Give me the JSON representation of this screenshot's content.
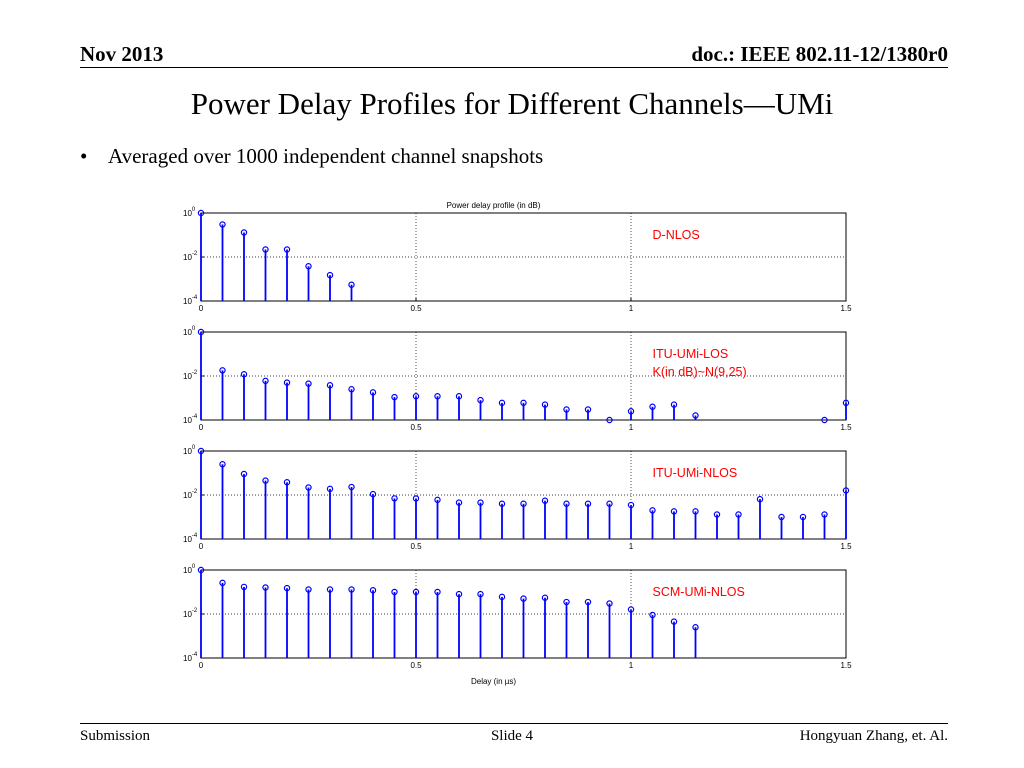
{
  "header": {
    "date": "Nov 2013",
    "doc": "doc.: IEEE 802.11-12/1380r0"
  },
  "title": "Power Delay Profiles for Different Channels—UMi",
  "bullet": "Averaged over 1000 independent channel snapshots",
  "footer": {
    "left": "Submission",
    "center": "Slide 4",
    "right": "Hongyuan Zhang, et. Al."
  },
  "colors": {
    "stem": "#0000ff",
    "label": "#ff0000",
    "axis": "#000000"
  },
  "chart_data": [
    {
      "type": "stem",
      "title": "Power delay profile (in dB)",
      "label": "D-NLOS",
      "label2": "",
      "xlim": [
        0,
        1.5
      ],
      "ylim": [
        0.0001,
        1
      ],
      "y_scale": "log",
      "xticks": [
        "0",
        "0.5",
        "1",
        "1.5"
      ],
      "yticks": [
        "10^0",
        "10^-2",
        "10^-4"
      ],
      "grid": true,
      "x": [
        0,
        0.05,
        0.1,
        0.15,
        0.2,
        0.25,
        0.3,
        0.35
      ],
      "values": [
        1,
        0.3,
        0.13,
        0.022,
        0.022,
        0.0038,
        0.0015,
        0.00055
      ]
    },
    {
      "type": "stem",
      "title": "",
      "label": "ITU-UMi-LOS",
      "label2": "K(in dB)~N(9,25)",
      "xlim": [
        0,
        1.5
      ],
      "ylim": [
        0.0001,
        1
      ],
      "y_scale": "log",
      "xticks": [
        "0",
        "0.5",
        "1",
        "1.5"
      ],
      "yticks": [
        "10^0",
        "10^-2",
        "10^-4"
      ],
      "grid": true,
      "x": [
        0,
        0.05,
        0.1,
        0.15,
        0.2,
        0.25,
        0.3,
        0.35,
        0.4,
        0.45,
        0.5,
        0.55,
        0.6,
        0.65,
        0.7,
        0.75,
        0.8,
        0.85,
        0.9,
        0.95,
        1.0,
        1.05,
        1.1,
        1.15,
        1.45,
        1.5
      ],
      "values": [
        1,
        0.018,
        0.012,
        0.006,
        0.005,
        0.0045,
        0.0038,
        0.0025,
        0.0018,
        0.0011,
        0.0012,
        0.0012,
        0.0012,
        0.0008,
        0.0006,
        0.0006,
        0.0005,
        0.0003,
        0.0003,
        0.0001,
        0.00025,
        0.0004,
        0.0005,
        0.00016,
        0.0001,
        0.0006
      ]
    },
    {
      "type": "stem",
      "title": "",
      "label": "ITU-UMi-NLOS",
      "label2": "",
      "xlim": [
        0,
        1.5
      ],
      "ylim": [
        0.0001,
        1
      ],
      "y_scale": "log",
      "xticks": [
        "0",
        "0.5",
        "1",
        "1.5"
      ],
      "yticks": [
        "10^0",
        "10^-2",
        "10^-4"
      ],
      "grid": true,
      "x": [
        0,
        0.05,
        0.1,
        0.15,
        0.2,
        0.25,
        0.3,
        0.35,
        0.4,
        0.45,
        0.5,
        0.55,
        0.6,
        0.65,
        0.7,
        0.75,
        0.8,
        0.85,
        0.9,
        0.95,
        1.0,
        1.05,
        1.1,
        1.15,
        1.2,
        1.25,
        1.3,
        1.35,
        1.4,
        1.45,
        1.5
      ],
      "values": [
        1,
        0.25,
        0.09,
        0.045,
        0.038,
        0.022,
        0.019,
        0.023,
        0.011,
        0.007,
        0.007,
        0.006,
        0.0045,
        0.0045,
        0.004,
        0.004,
        0.0055,
        0.004,
        0.004,
        0.004,
        0.0035,
        0.002,
        0.0018,
        0.0018,
        0.0013,
        0.0013,
        0.0065,
        0.001,
        0.001,
        0.0013,
        0.016
      ]
    },
    {
      "type": "stem",
      "title": "",
      "label": "SCM-UMi-NLOS",
      "label2": "",
      "xlim": [
        0,
        1.5
      ],
      "ylim": [
        0.0001,
        1
      ],
      "y_scale": "log",
      "xticks": [
        "0",
        "0.5",
        "1",
        "1.5"
      ],
      "yticks": [
        "10^0",
        "10^-2",
        "10^-4"
      ],
      "grid": true,
      "x": [
        0,
        0.05,
        0.1,
        0.15,
        0.2,
        0.25,
        0.3,
        0.35,
        0.4,
        0.45,
        0.5,
        0.55,
        0.6,
        0.65,
        0.7,
        0.75,
        0.8,
        0.85,
        0.9,
        0.95,
        1.0,
        1.05,
        1.1,
        1.15
      ],
      "values": [
        1,
        0.26,
        0.17,
        0.16,
        0.15,
        0.13,
        0.13,
        0.13,
        0.12,
        0.1,
        0.1,
        0.1,
        0.08,
        0.08,
        0.06,
        0.05,
        0.055,
        0.035,
        0.035,
        0.03,
        0.016,
        0.009,
        0.0045,
        0.0025
      ],
      "xlabel": "Delay (in µs)"
    }
  ]
}
